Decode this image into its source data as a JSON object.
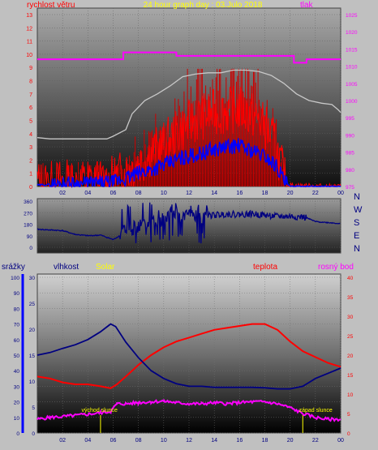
{
  "header": {
    "title": "24 hour graph day : 03.Julo 2018",
    "left_label": "rychlost větru",
    "right_label": "tlak"
  },
  "colors": {
    "wind": "#ff0000",
    "gust": "#cc0000",
    "wind_avg": "#0000ff",
    "pressure": "#ff00ff",
    "humidity": "#000080",
    "temperature": "#ff0000",
    "dewpoint": "#ff00ff",
    "solar": "#ffff00",
    "grey_line": "#c8c8c8",
    "direction": "#000080"
  },
  "time_ticks": [
    "02",
    "04",
    "06",
    "08",
    "10",
    "12",
    "14",
    "16",
    "18",
    "20",
    "22",
    "00"
  ],
  "chart_data": [
    {
      "type": "line",
      "title": "24 hour graph day : 03.Julo 2018",
      "left_axis": {
        "label": "rychlost větru",
        "ticks": [
          "0",
          "1",
          "2",
          "3",
          "4",
          "5",
          "6",
          "7",
          "8",
          "9",
          "10",
          "11",
          "12",
          "13"
        ],
        "range": [
          0,
          13
        ]
      },
      "right_axis": {
        "label": "tlak",
        "ticks": [
          "975",
          "980",
          "985",
          "990",
          "995",
          "1000",
          "1005",
          "1010",
          "1015",
          "1020",
          "1025"
        ],
        "range": [
          975,
          1025
        ]
      },
      "x": [
        0,
        2,
        4,
        6,
        8,
        10,
        12,
        14,
        16,
        18,
        20,
        22,
        24
      ],
      "series": [
        {
          "name": "tlak",
          "axis": "right",
          "points": [
            [
              0,
              1012
            ],
            [
              6.8,
              1012
            ],
            [
              6.8,
              1014
            ],
            [
              11,
              1014
            ],
            [
              11,
              1013
            ],
            [
              20.3,
              1013
            ],
            [
              20.3,
              1011
            ],
            [
              21.3,
              1011
            ],
            [
              21.3,
              1012
            ],
            [
              24,
              1012
            ]
          ]
        },
        {
          "axis": "left",
          "points": [
            [
              0,
              3.7
            ],
            [
              1,
              3.6
            ],
            [
              2,
              3.6
            ],
            [
              3,
              3.6
            ],
            [
              4,
              3.6
            ],
            [
              5.5,
              3.6
            ],
            [
              6,
              3.8
            ],
            [
              7,
              4.3
            ],
            [
              7.5,
              5.5
            ],
            [
              8.5,
              6.5
            ],
            [
              9.5,
              7
            ],
            [
              10.5,
              7.6
            ],
            [
              11.5,
              8.3
            ],
            [
              12.5,
              8.5
            ],
            [
              13.5,
              8.6
            ],
            [
              14.5,
              8.6
            ],
            [
              15.5,
              8.8
            ],
            [
              16.5,
              8.8
            ],
            [
              17.5,
              8.7
            ],
            [
              18.5,
              8.4
            ],
            [
              19.5,
              7.8
            ],
            [
              20.5,
              7
            ],
            [
              21.5,
              6.5
            ],
            [
              22.5,
              6.3
            ],
            [
              23.3,
              6.2
            ],
            [
              23.8,
              5.8
            ],
            [
              24,
              5.6
            ]
          ]
        },
        {
          "name": "rychlost větru",
          "axis": "left",
          "points": [
            [
              0,
              0.3
            ],
            [
              1,
              0.2
            ],
            [
              2,
              0.4
            ],
            [
              3,
              0.2
            ],
            [
              4,
              0.5
            ],
            [
              5,
              0.3
            ],
            [
              6,
              0.6
            ],
            [
              7,
              1.2
            ],
            [
              8,
              1.8
            ],
            [
              9,
              2.5
            ],
            [
              10,
              3.2
            ],
            [
              11,
              4
            ],
            [
              12,
              4.8
            ],
            [
              13,
              5.3
            ],
            [
              14,
              5.6
            ],
            [
              15,
              5.7
            ],
            [
              16,
              5.9
            ],
            [
              17,
              5.4
            ],
            [
              18,
              4.6
            ],
            [
              18.8,
              3.3
            ],
            [
              19.4,
              1.2
            ],
            [
              19.7,
              0.1
            ],
            [
              24,
              0
            ]
          ]
        },
        {
          "axis": "left",
          "points": [
            [
              0,
              0.1
            ],
            [
              2,
              0.2
            ],
            [
              4,
              0.2
            ],
            [
              6,
              0.3
            ],
            [
              7,
              0.6
            ],
            [
              8,
              1
            ],
            [
              9,
              1.3
            ],
            [
              10,
              1.6
            ],
            [
              11,
              2
            ],
            [
              12,
              2.3
            ],
            [
              13,
              2.5
            ],
            [
              14,
              2.8
            ],
            [
              15,
              3
            ],
            [
              16,
              3.1
            ],
            [
              17,
              2.7
            ],
            [
              18,
              2.3
            ],
            [
              19,
              1.5
            ],
            [
              19.6,
              0.3
            ],
            [
              20,
              0
            ],
            [
              24,
              0
            ]
          ]
        }
      ]
    },
    {
      "type": "line",
      "left_axis": {
        "ticks": [
          "0",
          "90",
          "180",
          "270",
          "360"
        ],
        "range": [
          0,
          360
        ]
      },
      "right_labels": [
        "N",
        "W",
        "S",
        "E",
        "N"
      ],
      "x": [
        0,
        2,
        4,
        6,
        8,
        10,
        12,
        14,
        16,
        18,
        20,
        22,
        24
      ],
      "series": [
        {
          "points": [
            [
              0,
              140
            ],
            [
              2,
              130
            ],
            [
              3,
              100
            ],
            [
              4,
              90
            ],
            [
              5,
              95
            ],
            [
              6,
              60
            ],
            [
              6.5,
              90
            ],
            [
              7,
              140
            ],
            [
              8,
              160
            ],
            [
              9,
              190
            ],
            [
              10,
              220
            ],
            [
              11,
              240
            ],
            [
              12,
              250
            ],
            [
              13,
              245
            ],
            [
              14,
              250
            ],
            [
              15,
              260
            ],
            [
              16,
              255
            ],
            [
              17,
              260
            ],
            [
              18,
              250
            ],
            [
              19,
              240
            ],
            [
              20,
              240
            ],
            [
              21,
              235
            ],
            [
              21.3,
              230
            ],
            [
              22,
              200
            ],
            [
              24,
              185
            ]
          ]
        }
      ]
    },
    {
      "type": "line",
      "left_labels": {
        "precip": "srážky",
        "humidity": "vlhkost",
        "solar": "Solar"
      },
      "right_labels": {
        "temperature": "teplota",
        "dewpoint": "rosný bod"
      },
      "precip_axis": {
        "ticks": [
          "0",
          "10",
          "20",
          "30",
          "40",
          "50",
          "60",
          "70",
          "80",
          "90",
          "100"
        ],
        "range": [
          0,
          100
        ]
      },
      "humidity_axis": {
        "ticks": [
          "0",
          "5",
          "10",
          "15",
          "20",
          "25",
          "30"
        ],
        "range": [
          0,
          30
        ]
      },
      "temperature_axis": {
        "ticks": [
          "0",
          "5",
          "10",
          "15",
          "20",
          "25",
          "30",
          "35",
          "40"
        ],
        "range": [
          0,
          40
        ]
      },
      "annotations": [
        {
          "text": "východ slunce",
          "x": 5.0
        },
        {
          "text": "západ slunce",
          "x": 21.0
        }
      ],
      "x": [
        0,
        2,
        4,
        6,
        8,
        10,
        12,
        14,
        16,
        18,
        20,
        22,
        24
      ],
      "series": [
        {
          "name": "vlhkost",
          "axis": "humidity",
          "points": [
            [
              0,
              15
            ],
            [
              1,
              15.5
            ],
            [
              2,
              16.3
            ],
            [
              3,
              17
            ],
            [
              4,
              18
            ],
            [
              5,
              19.5
            ],
            [
              5.8,
              21
            ],
            [
              6.2,
              20.5
            ],
            [
              7,
              17.5
            ],
            [
              8,
              14.5
            ],
            [
              9,
              12
            ],
            [
              10,
              10.5
            ],
            [
              11,
              9.5
            ],
            [
              12,
              9
            ],
            [
              13,
              9
            ],
            [
              14,
              8.8
            ],
            [
              15,
              8.8
            ],
            [
              16,
              8.8
            ],
            [
              17,
              8.8
            ],
            [
              18,
              8.7
            ],
            [
              19,
              8.5
            ],
            [
              20,
              8.5
            ],
            [
              21,
              9
            ],
            [
              22,
              10.5
            ],
            [
              23,
              11.5
            ],
            [
              24,
              12.5
            ]
          ]
        },
        {
          "name": "teplota",
          "axis": "temperature",
          "points": [
            [
              0,
              14.5
            ],
            [
              1,
              14
            ],
            [
              2,
              13
            ],
            [
              3,
              12.5
            ],
            [
              4,
              12.5
            ],
            [
              5,
              12
            ],
            [
              5.8,
              11.5
            ],
            [
              6.3,
              12.5
            ],
            [
              7,
              14.5
            ],
            [
              8,
              17.5
            ],
            [
              9,
              20
            ],
            [
              10,
              22
            ],
            [
              11,
              23.5
            ],
            [
              12,
              24.5
            ],
            [
              13,
              25.5
            ],
            [
              14,
              26.5
            ],
            [
              15,
              27
            ],
            [
              16,
              27.5
            ],
            [
              17,
              28
            ],
            [
              18,
              28
            ],
            [
              19,
              26.5
            ],
            [
              20,
              23.5
            ],
            [
              21,
              21
            ],
            [
              22,
              19.5
            ],
            [
              23,
              18
            ],
            [
              24,
              17
            ]
          ]
        },
        {
          "name": "rosný bod",
          "axis": "temperature",
          "points": [
            [
              0,
              3.5
            ],
            [
              1,
              4
            ],
            [
              2,
              4.2
            ],
            [
              3,
              4.5
            ],
            [
              4,
              4.8
            ],
            [
              5,
              5.2
            ],
            [
              5.8,
              5.5
            ],
            [
              6.3,
              7.5
            ],
            [
              7,
              7.5
            ],
            [
              8,
              7.8
            ],
            [
              9,
              8
            ],
            [
              10,
              8.2
            ],
            [
              11,
              7.8
            ],
            [
              12,
              7.5
            ],
            [
              13,
              7.5
            ],
            [
              14,
              7.8
            ],
            [
              15,
              7.5
            ],
            [
              16,
              7.8
            ],
            [
              17,
              8
            ],
            [
              18,
              8
            ],
            [
              19,
              7.5
            ],
            [
              20,
              6.5
            ],
            [
              21,
              5
            ],
            [
              22,
              4
            ],
            [
              23,
              3.5
            ],
            [
              24,
              3.5
            ]
          ]
        }
      ]
    }
  ]
}
